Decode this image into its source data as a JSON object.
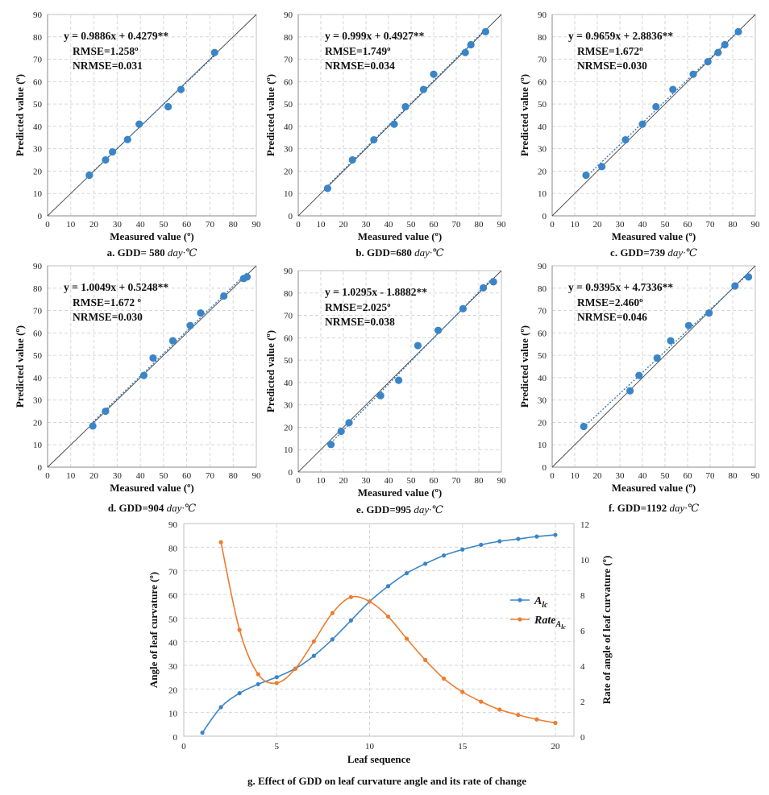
{
  "chart_data": [
    {
      "type": "scatter",
      "panel_caption": "a. GDD= 580 ",
      "caption_unit": "day·℃",
      "equation": "y = 0.9886x + 0.4279**",
      "rmse": "RMSE=1.258º",
      "nrmse": "NRMSE=0.031",
      "xlabel": "Measured value (º)",
      "ylabel": "Predicted value (º)",
      "xlim": [
        0,
        90
      ],
      "ylim": [
        0,
        90
      ],
      "ticks": [
        0,
        10,
        20,
        30,
        40,
        50,
        60,
        70,
        80,
        90
      ],
      "grid": true,
      "fit": {
        "slope": 0.9886,
        "intercept": 0.4279
      },
      "points": [
        [
          18,
          18.2
        ],
        [
          25,
          25
        ],
        [
          28,
          28.6
        ],
        [
          34.5,
          34.1
        ],
        [
          39.5,
          41
        ],
        [
          52,
          48.8
        ],
        [
          57.5,
          56.5
        ],
        [
          72,
          73
        ]
      ],
      "colors": {
        "point": "#3a85c8",
        "fit": "#2e75b6",
        "diag": "#444444"
      }
    },
    {
      "type": "scatter",
      "panel_caption": "b. GDD=680 ",
      "caption_unit": "day·℃",
      "equation": "y = 0.999x + 0.4927**",
      "rmse": "RMSE=1.749º",
      "nrmse": "NRMSE=0.034",
      "xlabel": "Measured value (º)",
      "ylabel": "Predicted value (º)",
      "xlim": [
        0,
        90
      ],
      "ylim": [
        0,
        90
      ],
      "ticks": [
        0,
        10,
        20,
        30,
        40,
        50,
        60,
        70,
        80,
        90
      ],
      "grid": true,
      "fit": {
        "slope": 0.999,
        "intercept": 0.4927
      },
      "points": [
        [
          13,
          12.3
        ],
        [
          24,
          25
        ],
        [
          33.5,
          34
        ],
        [
          42.5,
          41
        ],
        [
          47.5,
          48.8
        ],
        [
          55.5,
          56.5
        ],
        [
          60,
          63.3
        ],
        [
          74,
          73
        ],
        [
          76.5,
          76.5
        ],
        [
          83,
          82.3
        ]
      ],
      "colors": {
        "point": "#3a85c8",
        "fit": "#2e75b6",
        "diag": "#444444"
      }
    },
    {
      "type": "scatter",
      "panel_caption": "c. GDD=739 ",
      "caption_unit": "day·℃",
      "equation": "y = 0.9659x + 2.8836**",
      "rmse": "RMSE=1.672º",
      "nrmse": "NRMSE=0.030",
      "xlabel": "Measured value (º)",
      "ylabel": "Predicted value (º)",
      "xlim": [
        0,
        90
      ],
      "ylim": [
        0,
        90
      ],
      "ticks": [
        0,
        10,
        20,
        30,
        40,
        50,
        60,
        70,
        80,
        90
      ],
      "grid": true,
      "fit": {
        "slope": 0.9659,
        "intercept": 2.8836
      },
      "points": [
        [
          15,
          18.2
        ],
        [
          22,
          22
        ],
        [
          32.5,
          34
        ],
        [
          40,
          41
        ],
        [
          46,
          48.8
        ],
        [
          53.5,
          56.5
        ],
        [
          62.5,
          63.3
        ],
        [
          69,
          68.9
        ],
        [
          73.5,
          73
        ],
        [
          76.5,
          76.5
        ],
        [
          82.5,
          82.3
        ]
      ],
      "colors": {
        "point": "#3a85c8",
        "fit": "#2e75b6",
        "diag": "#444444"
      }
    },
    {
      "type": "scatter",
      "panel_caption": "d. GDD=904 ",
      "caption_unit": "day·℃",
      "equation": "y = 1.0049x + 0.5248**",
      "rmse": "RMSE=1.672 º",
      "nrmse": "NRMSE=0.030",
      "xlabel": "Measured value (º)",
      "ylabel": "Predicted value (º)",
      "xlim": [
        0,
        90
      ],
      "ylim": [
        0,
        90
      ],
      "ticks": [
        0,
        10,
        20,
        30,
        40,
        50,
        60,
        70,
        80,
        90
      ],
      "grid": true,
      "fit": {
        "slope": 1.0049,
        "intercept": 0.5248
      },
      "points": [
        [
          19.5,
          18.4
        ],
        [
          25,
          25
        ],
        [
          41.5,
          41
        ],
        [
          45.5,
          48.8
        ],
        [
          54,
          56.5
        ],
        [
          61.5,
          63.3
        ],
        [
          66,
          68.9
        ],
        [
          76,
          76.5
        ],
        [
          84.5,
          84.3
        ],
        [
          86,
          85
        ]
      ],
      "colors": {
        "point": "#3a85c8",
        "fit": "#2e75b6",
        "diag": "#444444"
      }
    },
    {
      "type": "scatter",
      "panel_caption": "e. GDD=995 ",
      "caption_unit": "day·℃",
      "equation": "y = 1.0295x - 1.8882**",
      "rmse": "RMSE=2.025º",
      "nrmse": "NRMSE=0.038",
      "xlabel": "Measured value (º)",
      "ylabel": "Predicted value (º)",
      "xlim": [
        0,
        90
      ],
      "ylim": [
        0,
        90
      ],
      "ticks": [
        0,
        10,
        20,
        30,
        40,
        50,
        60,
        70,
        80,
        90
      ],
      "grid": true,
      "fit": {
        "slope": 1.0295,
        "intercept": -1.8882
      },
      "points": [
        [
          14.5,
          12.3
        ],
        [
          19,
          18.2
        ],
        [
          22.5,
          22
        ],
        [
          36.5,
          34.1
        ],
        [
          44.5,
          41
        ],
        [
          53,
          56.5
        ],
        [
          62,
          63.3
        ],
        [
          73,
          73
        ],
        [
          82,
          82.3
        ],
        [
          86.5,
          85
        ]
      ],
      "colors": {
        "point": "#3a85c8",
        "fit": "#2e75b6",
        "diag": "#444444"
      }
    },
    {
      "type": "scatter",
      "panel_caption": "f. GDD=1192 ",
      "caption_unit": "day·℃",
      "equation": "y = 0.9395x + 4.7336**",
      "rmse": "RMSE=2.460º",
      "nrmse": "NRMSE=0.046",
      "xlabel": "Measured value (º)",
      "ylabel": "Predicted value (º)",
      "xlim": [
        0,
        90
      ],
      "ylim": [
        0,
        90
      ],
      "ticks": [
        0,
        10,
        20,
        30,
        40,
        50,
        60,
        70,
        80,
        90
      ],
      "grid": true,
      "fit": {
        "slope": 0.9395,
        "intercept": 4.7336
      },
      "points": [
        [
          14,
          18.2
        ],
        [
          34.5,
          34.1
        ],
        [
          38.5,
          41
        ],
        [
          46.5,
          48.8
        ],
        [
          52.5,
          56.5
        ],
        [
          60.5,
          63.3
        ],
        [
          69.5,
          68.9
        ],
        [
          81,
          81
        ],
        [
          87,
          85
        ]
      ],
      "colors": {
        "point": "#3a85c8",
        "fit": "#2e75b6",
        "diag": "#444444"
      }
    },
    {
      "type": "line",
      "panel_caption": "g. Effect of GDD on leaf curvature angle and its rate of change",
      "xlabel": "Leaf sequence",
      "ylabel_left": "Angle of leaf curvature (º)",
      "ylabel_right": "Rate of angle of leaf curvature (º)",
      "xlim": [
        0,
        21
      ],
      "xticks": [
        0,
        5,
        10,
        15,
        20
      ],
      "ylim_left": [
        0,
        90
      ],
      "yticks_left": [
        0,
        10,
        20,
        30,
        40,
        50,
        60,
        70,
        80,
        90
      ],
      "ylim_right": [
        0,
        12
      ],
      "yticks_right": [
        0,
        2,
        4,
        6,
        8,
        10,
        12
      ],
      "grid": true,
      "legend_position": "center-right",
      "series": [
        {
          "name": "A",
          "name_sub": "lc",
          "axis": "left",
          "color": "#3a85c8",
          "x": [
            1,
            2,
            3,
            4,
            5,
            6,
            7,
            8,
            9,
            10,
            11,
            12,
            13,
            14,
            15,
            16,
            17,
            18,
            19,
            20
          ],
          "values": [
            1.5,
            12.3,
            18.2,
            22,
            25,
            28.6,
            34,
            41,
            49,
            57,
            63.5,
            69,
            73,
            76.5,
            79,
            81,
            82.5,
            83.5,
            84.5,
            85.2
          ]
        },
        {
          "name": "Rate",
          "name_sub": "A",
          "name_subsub": "lc",
          "axis": "right",
          "color": "#ed7d31",
          "x": [
            2,
            3,
            4,
            5,
            6,
            7,
            8,
            9,
            10,
            11,
            12,
            13,
            14,
            15,
            16,
            17,
            18,
            19,
            20
          ],
          "values": [
            10.95,
            6.0,
            3.5,
            3.0,
            3.8,
            5.35,
            6.95,
            7.85,
            7.6,
            6.75,
            5.5,
            4.3,
            3.25,
            2.5,
            1.95,
            1.5,
            1.2,
            0.95,
            0.75
          ]
        }
      ]
    }
  ]
}
